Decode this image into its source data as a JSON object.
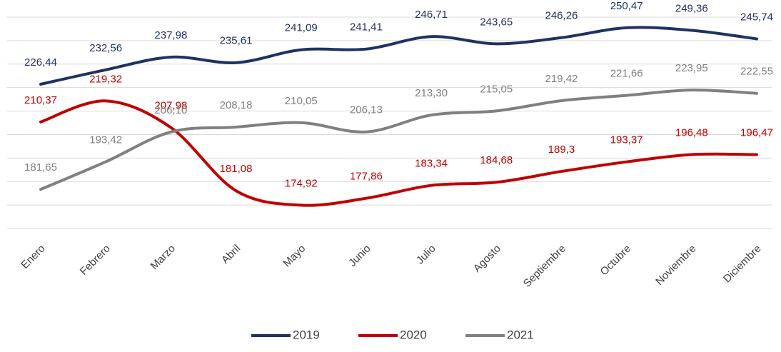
{
  "chart_data": {
    "type": "line",
    "categories": [
      "Enero",
      "Febrero",
      "Marzo",
      "Abril",
      "Mayo",
      "Junio",
      "Julio",
      "Agosto",
      "Septiembre",
      "Octubre",
      "Noviembre",
      "Diciembre"
    ],
    "series": [
      {
        "name": "2019",
        "color": "#1f3264",
        "values": [
          226.44,
          232.56,
          237.98,
          235.61,
          241.09,
          241.41,
          246.71,
          243.65,
          246.26,
          250.47,
          249.36,
          245.74
        ],
        "value_labels": [
          "226,44",
          "232,56",
          "237,98",
          "235,61",
          "241,09",
          "241,41",
          "246,71",
          "243,65",
          "246,26",
          "250,47",
          "249,36",
          "245,74"
        ]
      },
      {
        "name": "2020",
        "color": "#c00000",
        "values": [
          210.37,
          219.32,
          207.98,
          181.08,
          174.92,
          177.86,
          183.34,
          184.68,
          189.3,
          193.37,
          196.48,
          196.47
        ],
        "value_labels": [
          "210,37",
          "219,32",
          "207,98",
          "181,08",
          "174,92",
          "177,86",
          "183,34",
          "184,68",
          "189,3",
          "193,37",
          "196,48",
          "196,47"
        ]
      },
      {
        "name": "2021",
        "color": "#808080",
        "values": [
          181.65,
          193.42,
          206.1,
          208.18,
          210.05,
          206.13,
          213.3,
          215.05,
          219.42,
          221.66,
          223.95,
          222.55
        ],
        "value_labels": [
          "181,65",
          "193,42",
          "206,10",
          "208,18",
          "210,05",
          "206,13",
          "213,30",
          "215,05",
          "219,42",
          "221,66",
          "223,95",
          "222,55"
        ]
      }
    ],
    "ylim": [
      165,
      255
    ],
    "yticks": [
      165,
      175,
      185,
      195,
      205,
      215,
      225,
      235,
      245,
      255
    ],
    "grid": true,
    "legend": "bottom"
  }
}
